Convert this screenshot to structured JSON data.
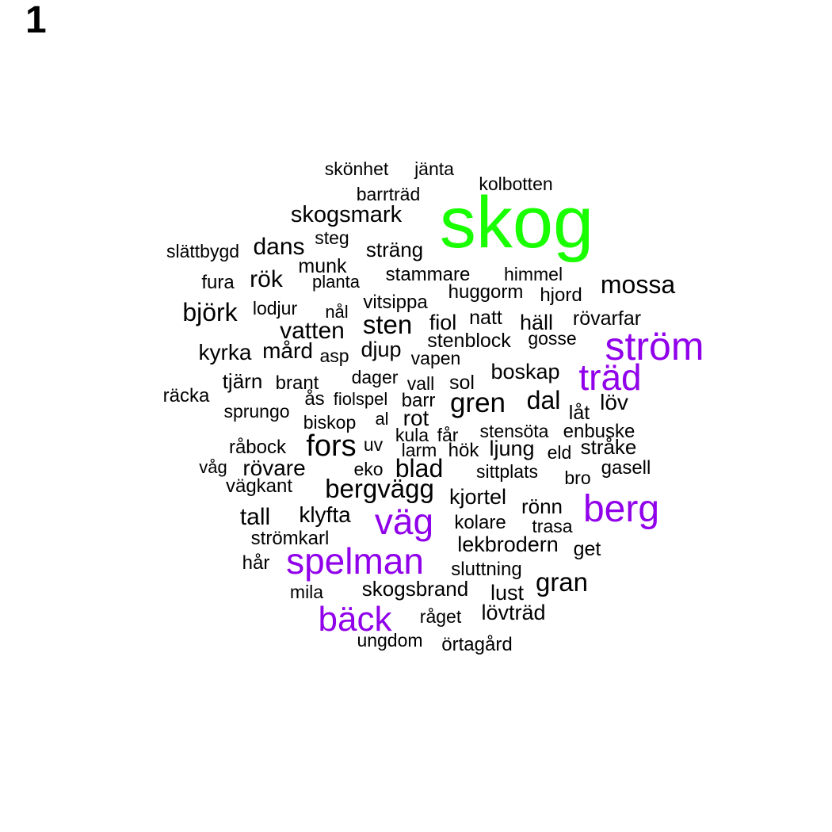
{
  "panel_label": "1",
  "colors": {
    "green": "#19ff00",
    "purple": "#9000ea",
    "black": "#000000",
    "background": "#ffffff"
  },
  "words": [
    {
      "text": "skog",
      "color": "green"
    },
    {
      "text": "ström",
      "color": "purple"
    },
    {
      "text": "träd",
      "color": "purple"
    },
    {
      "text": "berg",
      "color": "purple"
    },
    {
      "text": "väg",
      "color": "purple"
    },
    {
      "text": "spelman",
      "color": "purple"
    },
    {
      "text": "bäck",
      "color": "purple"
    },
    {
      "text": "skönhet",
      "color": "black"
    },
    {
      "text": "jänta",
      "color": "black"
    },
    {
      "text": "kolbotten",
      "color": "black"
    },
    {
      "text": "barrträd",
      "color": "black"
    },
    {
      "text": "skogsmark",
      "color": "black"
    },
    {
      "text": "slättbygd",
      "color": "black"
    },
    {
      "text": "dans",
      "color": "black"
    },
    {
      "text": "steg",
      "color": "black"
    },
    {
      "text": "sträng",
      "color": "black"
    },
    {
      "text": "munk",
      "color": "black"
    },
    {
      "text": "fura",
      "color": "black"
    },
    {
      "text": "rök",
      "color": "black"
    },
    {
      "text": "planta",
      "color": "black"
    },
    {
      "text": "stammare",
      "color": "black"
    },
    {
      "text": "himmel",
      "color": "black"
    },
    {
      "text": "mossa",
      "color": "black"
    },
    {
      "text": "huggorm",
      "color": "black"
    },
    {
      "text": "hjord",
      "color": "black"
    },
    {
      "text": "vitsippa",
      "color": "black"
    },
    {
      "text": "björk",
      "color": "black"
    },
    {
      "text": "lodjur",
      "color": "black"
    },
    {
      "text": "nål",
      "color": "black"
    },
    {
      "text": "natt",
      "color": "black"
    },
    {
      "text": "rövarfar",
      "color": "black"
    },
    {
      "text": "sten",
      "color": "black"
    },
    {
      "text": "fiol",
      "color": "black"
    },
    {
      "text": "häll",
      "color": "black"
    },
    {
      "text": "vatten",
      "color": "black"
    },
    {
      "text": "gosse",
      "color": "black"
    },
    {
      "text": "stenblock",
      "color": "black"
    },
    {
      "text": "kyrka",
      "color": "black"
    },
    {
      "text": "mård",
      "color": "black"
    },
    {
      "text": "asp",
      "color": "black"
    },
    {
      "text": "djup",
      "color": "black"
    },
    {
      "text": "vapen",
      "color": "black"
    },
    {
      "text": "tjärn",
      "color": "black"
    },
    {
      "text": "brant",
      "color": "black"
    },
    {
      "text": "dager",
      "color": "black"
    },
    {
      "text": "vall",
      "color": "black"
    },
    {
      "text": "sol",
      "color": "black"
    },
    {
      "text": "boskap",
      "color": "black"
    },
    {
      "text": "räcka",
      "color": "black"
    },
    {
      "text": "ås",
      "color": "black"
    },
    {
      "text": "fiolspel",
      "color": "black"
    },
    {
      "text": "barr",
      "color": "black"
    },
    {
      "text": "gren",
      "color": "black"
    },
    {
      "text": "dal",
      "color": "black"
    },
    {
      "text": "löv",
      "color": "black"
    },
    {
      "text": "sprungo",
      "color": "black"
    },
    {
      "text": "al",
      "color": "black"
    },
    {
      "text": "rot",
      "color": "black"
    },
    {
      "text": "låt",
      "color": "black"
    },
    {
      "text": "biskop",
      "color": "black"
    },
    {
      "text": "kula",
      "color": "black"
    },
    {
      "text": "får",
      "color": "black"
    },
    {
      "text": "stensöta",
      "color": "black"
    },
    {
      "text": "enbuske",
      "color": "black"
    },
    {
      "text": "råbock",
      "color": "black"
    },
    {
      "text": "fors",
      "color": "black"
    },
    {
      "text": "uv",
      "color": "black"
    },
    {
      "text": "larm",
      "color": "black"
    },
    {
      "text": "hök",
      "color": "black"
    },
    {
      "text": "ljung",
      "color": "black"
    },
    {
      "text": "eld",
      "color": "black"
    },
    {
      "text": "stråke",
      "color": "black"
    },
    {
      "text": "våg",
      "color": "black"
    },
    {
      "text": "rövare",
      "color": "black"
    },
    {
      "text": "eko",
      "color": "black"
    },
    {
      "text": "blad",
      "color": "black"
    },
    {
      "text": "sittplats",
      "color": "black"
    },
    {
      "text": "bro",
      "color": "black"
    },
    {
      "text": "gasell",
      "color": "black"
    },
    {
      "text": "vägkant",
      "color": "black"
    },
    {
      "text": "bergvägg",
      "color": "black"
    },
    {
      "text": "kjortel",
      "color": "black"
    },
    {
      "text": "rönn",
      "color": "black"
    },
    {
      "text": "tall",
      "color": "black"
    },
    {
      "text": "klyfta",
      "color": "black"
    },
    {
      "text": "kolare",
      "color": "black"
    },
    {
      "text": "trasa",
      "color": "black"
    },
    {
      "text": "strömkarl",
      "color": "black"
    },
    {
      "text": "lekbrodern",
      "color": "black"
    },
    {
      "text": "get",
      "color": "black"
    },
    {
      "text": "hår",
      "color": "black"
    },
    {
      "text": "sluttning",
      "color": "black"
    },
    {
      "text": "gran",
      "color": "black"
    },
    {
      "text": "mila",
      "color": "black"
    },
    {
      "text": "skogsbrand",
      "color": "black"
    },
    {
      "text": "lust",
      "color": "black"
    },
    {
      "text": "lövträd",
      "color": "black"
    },
    {
      "text": "råget",
      "color": "black"
    },
    {
      "text": "ungdom",
      "color": "black"
    },
    {
      "text": "örtagård",
      "color": "black"
    }
  ]
}
